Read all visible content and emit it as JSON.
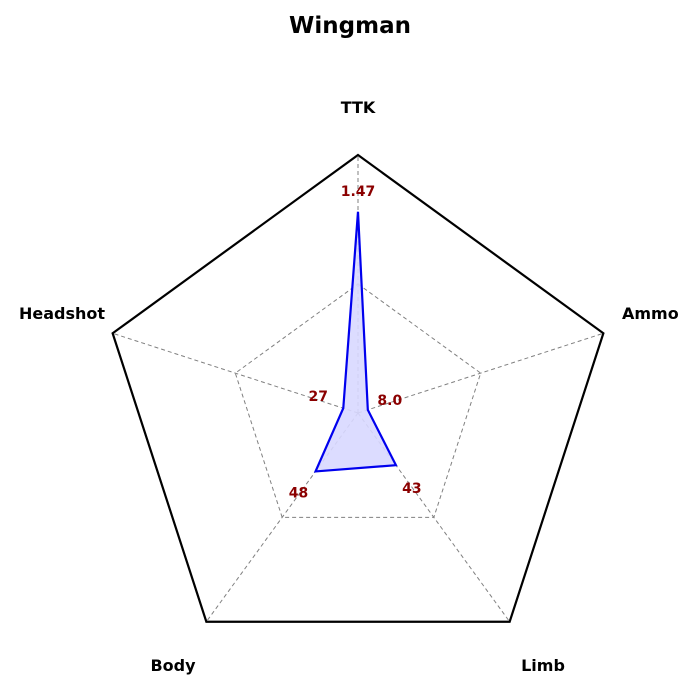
{
  "chart_data": {
    "type": "radar",
    "title": "Wingman",
    "axes": [
      {
        "label": "TTK",
        "value": 1.47,
        "display": "1.47",
        "fraction": 0.78
      },
      {
        "label": "Ammo",
        "value": 8.0,
        "display": "8.0",
        "fraction": 0.04
      },
      {
        "label": "Limb",
        "value": 43,
        "display": "43",
        "fraction": 0.25
      },
      {
        "label": "Body",
        "value": 48,
        "display": "48",
        "fraction": 0.28
      },
      {
        "label": "Headshot",
        "value": 27,
        "display": "27",
        "fraction": 0.06
      }
    ],
    "grid_levels": [
      0.5
    ],
    "grid": true,
    "colors": {
      "line": "#0000ee",
      "fill": "#d8d8ff",
      "value_text": "#8b0000",
      "outer": "#000000",
      "grid": "#808080"
    }
  }
}
